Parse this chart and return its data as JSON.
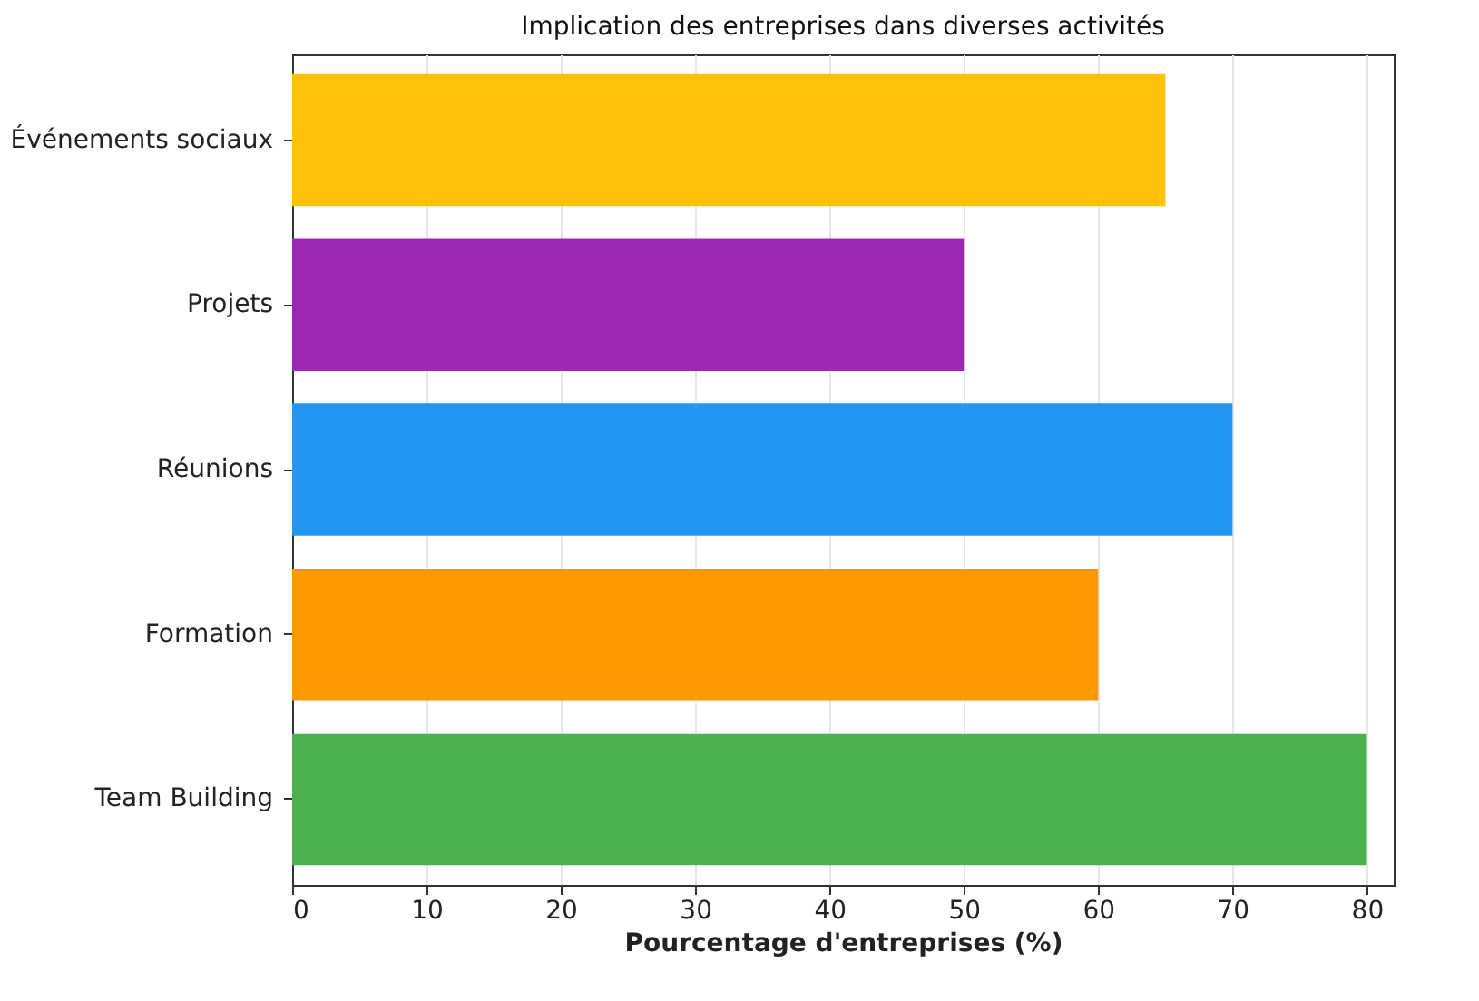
{
  "chart_data": {
    "type": "bar",
    "orientation": "horizontal",
    "title": "Implication des entreprises dans diverses activités",
    "xlabel": "Pourcentage d'entreprises (%)",
    "categories": [
      "Événements sociaux",
      "Projets",
      "Réunions",
      "Formation",
      "Team Building"
    ],
    "values": [
      65,
      50,
      70,
      60,
      80
    ],
    "colors": [
      "#ffc107",
      "#9c27b0",
      "#2196f3",
      "#ff9800",
      "#4caf50"
    ],
    "xlim": [
      0,
      82
    ],
    "xticks": [
      0,
      10,
      20,
      30,
      40,
      50,
      60,
      70,
      80
    ],
    "grid": "x"
  }
}
